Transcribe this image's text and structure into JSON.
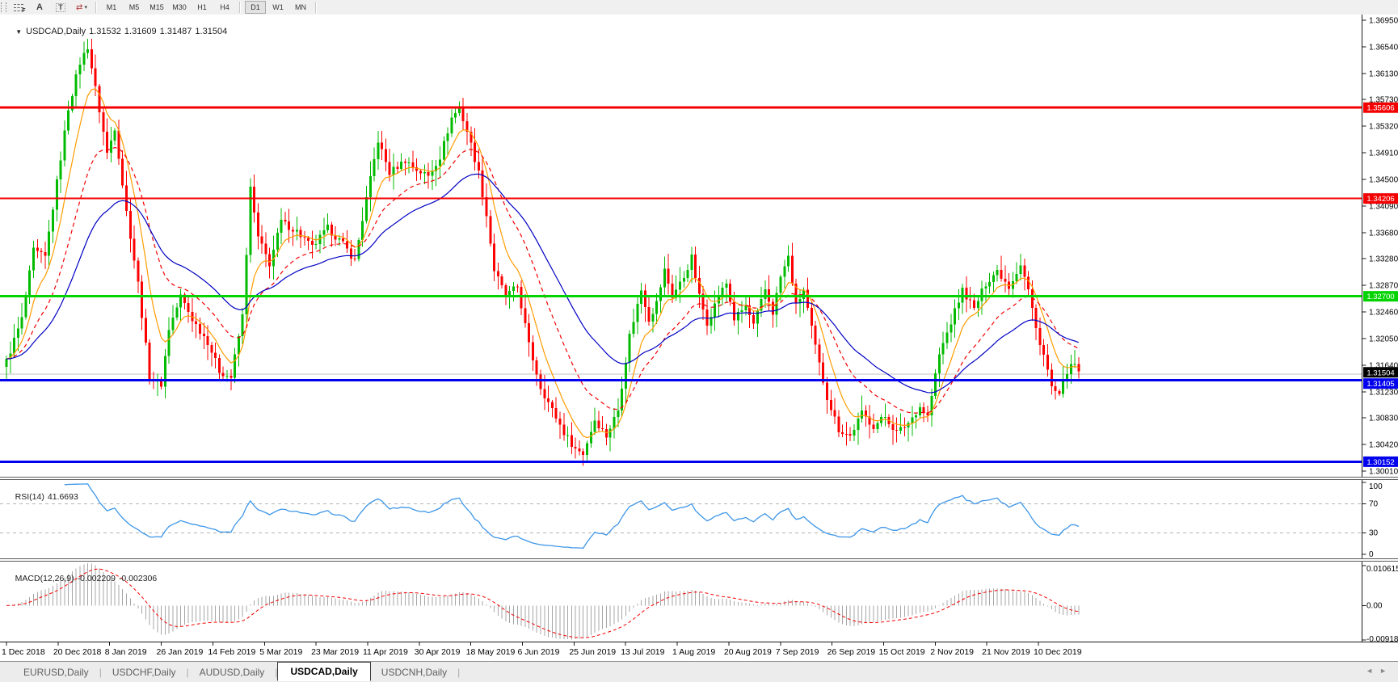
{
  "toolbar": {
    "tools": [
      {
        "name": "fibonacci-tool",
        "glyph": "F"
      },
      {
        "name": "text-tool",
        "glyph": "A"
      },
      {
        "name": "textbox-tool",
        "glyph": "T"
      },
      {
        "name": "arrows-tool",
        "glyph": "⇄"
      }
    ],
    "dropdown_glyph": "▾",
    "timeframes": [
      "M1",
      "M5",
      "M15",
      "M30",
      "H1",
      "H4",
      "D1",
      "W1",
      "MN"
    ],
    "active_timeframe": "D1"
  },
  "title": {
    "collapse_glyph": "▼",
    "symbol": "USDCAD,Daily",
    "open": "1.31532",
    "high": "1.31609",
    "low": "1.31487",
    "close": "1.31504"
  },
  "price_axis": {
    "labels": [
      "1.36950",
      "1.36540",
      "1.36130",
      "1.35730",
      "1.35320",
      "1.34910",
      "1.34500",
      "1.34090",
      "1.33680",
      "1.33280",
      "1.32870",
      "1.32460",
      "1.32050",
      "1.31640",
      "1.31230",
      "1.30830",
      "1.30420",
      "1.30010"
    ],
    "values": [
      1.3695,
      1.3654,
      1.3613,
      1.3573,
      1.3532,
      1.3491,
      1.345,
      1.3409,
      1.3368,
      1.3328,
      1.3287,
      1.3246,
      1.3205,
      1.3164,
      1.3123,
      1.3083,
      1.3042,
      1.3001
    ]
  },
  "hlines": [
    {
      "price": 1.35606,
      "label": "1.35606",
      "color": "#f40000",
      "width": 3
    },
    {
      "price": 1.34206,
      "label": "1.34206",
      "color": "#f40000",
      "width": 2
    },
    {
      "price": 1.327,
      "label": "1.32700",
      "color": "#00d300",
      "width": 3
    },
    {
      "price": 1.31405,
      "label": "1.31405",
      "color": "#0000ee",
      "width": 3
    },
    {
      "price": 1.30152,
      "label": "1.30152",
      "color": "#0000ee",
      "width": 3
    }
  ],
  "current_price": {
    "value": 1.31504,
    "label": "1.31504",
    "line_color": "#c2c2c2",
    "tag_bg": "#000000"
  },
  "rsi": {
    "name": "RSI(14)",
    "value": "41.6693",
    "period": 14,
    "levels": [
      70,
      30
    ],
    "axis_labels": [
      "100",
      "70",
      "30",
      "0"
    ],
    "axis_values": [
      100,
      70,
      30,
      0
    ],
    "line_color": "#3d96e8",
    "level_color": "#b4b4b4"
  },
  "macd": {
    "name": "MACD(12,26,9)",
    "macd_value": "-0.002209",
    "signal_value": "-0.002306",
    "fast": 12,
    "slow": 26,
    "signal": 9,
    "axis_labels": [
      "0.010615",
      "0.00",
      "-0.009181"
    ],
    "axis_values": [
      0.010615,
      0,
      -0.009181
    ],
    "max": 0.010615,
    "min": -0.009181,
    "hist_color": "#a6a6a6",
    "signal_color": "#f40000"
  },
  "date_axis": {
    "labels": [
      "1 Dec 2018",
      "20 Dec 2018",
      "8 Jan 2019",
      "26 Jan 2019",
      "14 Feb 2019",
      "5 Mar 2019",
      "23 Mar 2019",
      "11 Apr 2019",
      "30 Apr 2019",
      "18 May 2019",
      "6 Jun 2019",
      "25 Jun 2019",
      "13 Jul 2019",
      "1 Aug 2019",
      "20 Aug 2019",
      "7 Sep 2019",
      "26 Sep 2019",
      "15 Oct 2019",
      "2 Nov 2019",
      "21 Nov 2019",
      "10 Dec 2019"
    ]
  },
  "tabs": {
    "items": [
      {
        "label": "EURUSD,Daily",
        "active": false
      },
      {
        "label": "USDCHF,Daily",
        "active": false
      },
      {
        "label": "AUDUSD,Daily",
        "active": false
      },
      {
        "label": "USDCAD,Daily",
        "active": true
      },
      {
        "label": "USDCNH,Daily",
        "active": false
      }
    ],
    "scroll_left_glyph": "◄",
    "scroll_right_glyph": "►"
  },
  "chart_data": {
    "type": "candlestick",
    "symbol": "USDCAD",
    "timeframe": "Daily",
    "categories": [
      "1 Dec 2018",
      "20 Dec 2018",
      "8 Jan 2019",
      "26 Jan 2019",
      "14 Feb 2019",
      "5 Mar 2019",
      "23 Mar 2019",
      "11 Apr 2019",
      "30 Apr 2019",
      "18 May 2019",
      "6 Jun 2019",
      "25 Jun 2019",
      "13 Jul 2019",
      "1 Aug 2019",
      "20 Aug 2019",
      "7 Sep 2019",
      "26 Sep 2019",
      "15 Oct 2019",
      "2 Nov 2019",
      "21 Nov 2019",
      "10 Dec 2019"
    ],
    "visible_price_range": [
      1.2997,
      1.3699
    ],
    "n_candles": 278,
    "noise": 0.0011,
    "close_anchors": [
      [
        0,
        1.317
      ],
      [
        4,
        1.3235
      ],
      [
        7,
        1.334
      ],
      [
        10,
        1.333
      ],
      [
        13,
        1.3445
      ],
      [
        16,
        1.356
      ],
      [
        19,
        1.363
      ],
      [
        21,
        1.3655
      ],
      [
        23,
        1.359
      ],
      [
        26,
        1.349
      ],
      [
        28,
        1.353
      ],
      [
        31,
        1.34
      ],
      [
        34,
        1.329
      ],
      [
        37,
        1.3145
      ],
      [
        40,
        1.3135
      ],
      [
        42,
        1.322
      ],
      [
        45,
        1.327
      ],
      [
        48,
        1.3235
      ],
      [
        52,
        1.32
      ],
      [
        55,
        1.3155
      ],
      [
        58,
        1.3145
      ],
      [
        61,
        1.324
      ],
      [
        63,
        1.3435
      ],
      [
        65,
        1.336
      ],
      [
        68,
        1.332
      ],
      [
        71,
        1.3385
      ],
      [
        75,
        1.337
      ],
      [
        79,
        1.3345
      ],
      [
        83,
        1.3375
      ],
      [
        87,
        1.335
      ],
      [
        90,
        1.3325
      ],
      [
        93,
        1.342
      ],
      [
        96,
        1.351
      ],
      [
        99,
        1.346
      ],
      [
        103,
        1.348
      ],
      [
        106,
        1.3465
      ],
      [
        109,
        1.3455
      ],
      [
        112,
        1.3485
      ],
      [
        115,
        1.3545
      ],
      [
        117,
        1.356
      ],
      [
        119,
        1.3525
      ],
      [
        122,
        1.346
      ],
      [
        124,
        1.3395
      ],
      [
        126,
        1.331
      ],
      [
        129,
        1.327
      ],
      [
        132,
        1.3285
      ],
      [
        135,
        1.3195
      ],
      [
        138,
        1.313
      ],
      [
        141,
        1.3095
      ],
      [
        144,
        1.306
      ],
      [
        147,
        1.3035
      ],
      [
        149,
        1.3028
      ],
      [
        152,
        1.308
      ],
      [
        155,
        1.3055
      ],
      [
        158,
        1.3095
      ],
      [
        161,
        1.321
      ],
      [
        164,
        1.328
      ],
      [
        166,
        1.3235
      ],
      [
        168,
        1.326
      ],
      [
        170,
        1.331
      ],
      [
        172,
        1.327
      ],
      [
        175,
        1.33
      ],
      [
        177,
        1.333
      ],
      [
        179,
        1.327
      ],
      [
        181,
        1.323
      ],
      [
        184,
        1.327
      ],
      [
        186,
        1.329
      ],
      [
        188,
        1.3235
      ],
      [
        191,
        1.3255
      ],
      [
        193,
        1.3225
      ],
      [
        196,
        1.328
      ],
      [
        198,
        1.3245
      ],
      [
        200,
        1.33
      ],
      [
        202,
        1.333
      ],
      [
        204,
        1.3255
      ],
      [
        206,
        1.328
      ],
      [
        208,
        1.322
      ],
      [
        210,
        1.3165
      ],
      [
        212,
        1.3115
      ],
      [
        215,
        1.3065
      ],
      [
        218,
        1.3055
      ],
      [
        221,
        1.309
      ],
      [
        224,
        1.307
      ],
      [
        227,
        1.3085
      ],
      [
        230,
        1.306
      ],
      [
        233,
        1.3075
      ],
      [
        236,
        1.31
      ],
      [
        238,
        1.3085
      ],
      [
        241,
        1.318
      ],
      [
        244,
        1.323
      ],
      [
        247,
        1.328
      ],
      [
        250,
        1.325
      ],
      [
        253,
        1.329
      ],
      [
        256,
        1.331
      ],
      [
        259,
        1.3285
      ],
      [
        262,
        1.332
      ],
      [
        264,
        1.328
      ],
      [
        266,
        1.322
      ],
      [
        268,
        1.318
      ],
      [
        270,
        1.313
      ],
      [
        272,
        1.3115
      ],
      [
        274,
        1.3155
      ],
      [
        276,
        1.3165
      ],
      [
        277,
        1.315
      ]
    ],
    "up_color": "#00bb00",
    "down_color": "#ff0000",
    "moving_averages": [
      {
        "name": "fast-ma",
        "period": 8,
        "color": "#ff9c00",
        "dash": ""
      },
      {
        "name": "mid-ma",
        "period": 20,
        "color": "#f40000",
        "dash": "5,4"
      },
      {
        "name": "slow-ma",
        "period": 40,
        "color": "#0000c4",
        "dash": ""
      }
    ]
  }
}
